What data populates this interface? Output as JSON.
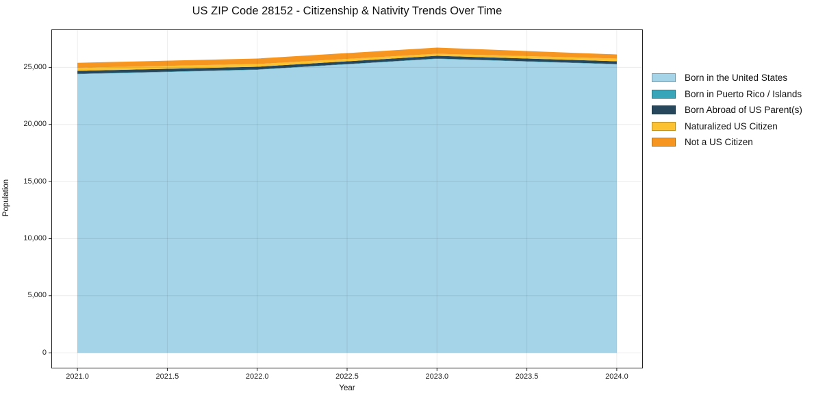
{
  "chart": {
    "title": "US ZIP Code 28152 - Citizenship & Nativity Trends Over Time",
    "xlabel": "Year",
    "ylabel": "Population"
  },
  "chart_data": {
    "type": "area",
    "stacked": true,
    "title": "US ZIP Code 28152 - Citizenship & Nativity Trends Over Time",
    "xlabel": "Year",
    "ylabel": "Population",
    "x": [
      2021,
      2022,
      2023,
      2024
    ],
    "series": [
      {
        "name": "Born in the United States",
        "color": "#a5d3e7",
        "values": [
          24400,
          24780,
          25740,
          25260
        ]
      },
      {
        "name": "Born in Puerto Rico / Islands",
        "color": "#39a5b9",
        "values": [
          40,
          30,
          30,
          30
        ]
      },
      {
        "name": "Born Abroad of US Parent(s)",
        "color": "#27485c",
        "values": [
          250,
          240,
          240,
          240
        ]
      },
      {
        "name": "Naturalized US Citizen",
        "color": "#fcc22f",
        "values": [
          280,
          240,
          180,
          240
        ]
      },
      {
        "name": "Not a US Citizen",
        "color": "#f6951f",
        "values": [
          430,
          480,
          540,
          360
        ]
      }
    ],
    "totals": [
      25400,
      25770,
      26730,
      26130
    ],
    "xlim": [
      2020.855,
      2024.145
    ],
    "ylim": [
      -1370,
      28320
    ],
    "xticks": {
      "values": [
        2021.0,
        2021.5,
        2022.0,
        2022.5,
        2023.0,
        2023.5,
        2024.0
      ],
      "labels": [
        "2021.0",
        "2021.5",
        "2022.0",
        "2022.5",
        "2023.0",
        "2023.5",
        "2024.0"
      ]
    },
    "yticks": {
      "values": [
        0,
        5000,
        10000,
        15000,
        20000,
        25000
      ],
      "labels": [
        "0",
        "5,000",
        "10,000",
        "15,000",
        "20,000",
        "25,000"
      ]
    },
    "grid": true,
    "grid_color": "rgba(0,0,0,0.08)",
    "spine_color": "#222222",
    "legend_position": "right-outside",
    "background_color": "#ffffff"
  }
}
